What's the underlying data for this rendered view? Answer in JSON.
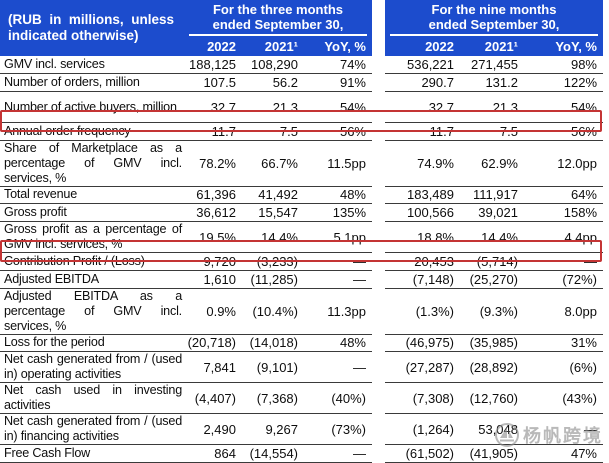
{
  "header": {
    "left_label": "(RUB in millions, unless indicated otherwise)",
    "groups": [
      {
        "title": "For the three months ended September 30,",
        "cols": [
          "2022",
          "2021¹",
          "YoY, %"
        ]
      },
      {
        "title": "For the nine months ended September 30,",
        "cols": [
          "2022",
          "2021¹",
          "YoY, %"
        ]
      }
    ]
  },
  "rows": [
    {
      "label": "GMV incl. services",
      "lines": 1,
      "highlight": true,
      "three_months": [
        "188,125",
        "108,290",
        "74%"
      ],
      "nine_months": [
        "536,221",
        "271,455",
        "98%"
      ]
    },
    {
      "label": "Number of orders, million",
      "lines": 1,
      "highlight": false,
      "three_months": [
        "107.5",
        "56.2",
        "91%"
      ],
      "nine_months": [
        "290.7",
        "131.2",
        "122%"
      ]
    },
    {
      "label": "Number of active buyers, million",
      "lines": 2,
      "highlight": false,
      "three_months": [
        "32.7",
        "21.3",
        "54%"
      ],
      "nine_months": [
        "32.7",
        "21.3",
        "54%"
      ]
    },
    {
      "label": "Annual order frequency",
      "lines": 1,
      "highlight": false,
      "three_months": [
        "11.7",
        "7.5",
        "56%"
      ],
      "nine_months": [
        "11.7",
        "7.5",
        "56%"
      ]
    },
    {
      "label": "Share of Marketplace as a percentage of GMV incl. services, %",
      "lines": 3,
      "highlight": false,
      "three_months": [
        "78.2%",
        "66.7%",
        "11.5pp"
      ],
      "nine_months": [
        "74.9%",
        "62.9%",
        "12.0pp"
      ]
    },
    {
      "label": "Total revenue",
      "lines": 1,
      "highlight": true,
      "three_months": [
        "61,396",
        "41,492",
        "48%"
      ],
      "nine_months": [
        "183,489",
        "111,917",
        "64%"
      ]
    },
    {
      "label": "Gross profit",
      "lines": 1,
      "highlight": false,
      "three_months": [
        "36,612",
        "15,547",
        "135%"
      ],
      "nine_months": [
        "100,566",
        "39,021",
        "158%"
      ]
    },
    {
      "label": "Gross profit as a percentage of GMV incl. services, %",
      "lines": 2,
      "highlight": false,
      "three_months": [
        "19.5%",
        "14.4%",
        "5.1pp"
      ],
      "nine_months": [
        "18.8%",
        "14.4%",
        "4.4pp"
      ]
    },
    {
      "label": "Contribution Profit / (Loss)",
      "lines": 1,
      "highlight": false,
      "three_months": [
        "9,720",
        "(3,233)",
        "—"
      ],
      "nine_months": [
        "20,453",
        "(5,714)",
        "—"
      ]
    },
    {
      "label": "Adjusted EBITDA",
      "lines": 1,
      "highlight": false,
      "three_months": [
        "1,610",
        "(11,285)",
        "—"
      ],
      "nine_months": [
        "(7,148)",
        "(25,270)",
        "(72%)"
      ]
    },
    {
      "label": "Adjusted EBITDA as a percentage of GMV incl. services, %",
      "lines": 3,
      "highlight": false,
      "three_months": [
        "0.9%",
        "(10.4%)",
        "11.3pp"
      ],
      "nine_months": [
        "(1.3%)",
        "(9.3%)",
        "8.0pp"
      ]
    },
    {
      "label": "Loss for the period",
      "lines": 1,
      "highlight": false,
      "three_months": [
        "(20,718)",
        "(14,018)",
        "48%"
      ],
      "nine_months": [
        "(46,975)",
        "(35,985)",
        "31%"
      ]
    },
    {
      "label": "Net cash generated from / (used in) operating activities",
      "lines": 2,
      "highlight": false,
      "three_months": [
        "7,841",
        "(9,101)",
        "—"
      ],
      "nine_months": [
        "(27,287)",
        "(28,892)",
        "(6%)"
      ]
    },
    {
      "label": "Net cash used in investing activities",
      "lines": 2,
      "highlight": false,
      "three_months": [
        "(4,407)",
        "(7,368)",
        "(40%)"
      ],
      "nine_months": [
        "(7,308)",
        "(12,760)",
        "(43%)"
      ]
    },
    {
      "label": "Net cash generated from / (used in) financing activities",
      "lines": 2,
      "highlight": false,
      "three_months": [
        "2,490",
        "9,267",
        "(73%)"
      ],
      "nine_months": [
        "(1,264)",
        "53,048",
        "—"
      ]
    },
    {
      "label": "Free Cash Flow",
      "lines": 1,
      "highlight": false,
      "three_months": [
        "864",
        "(14,554)",
        "—"
      ],
      "nine_months": [
        "(61,502)",
        "(41,905)",
        "47%"
      ]
    }
  ],
  "watermark": {
    "text": "杨帆跨境",
    "logo": "sailboat-logo"
  },
  "colors": {
    "header_blue": "#1c4ccd",
    "annotation_red": "#c43434",
    "row_line": "#3a3a3a",
    "watermark_gray": "#8f8f8f"
  }
}
